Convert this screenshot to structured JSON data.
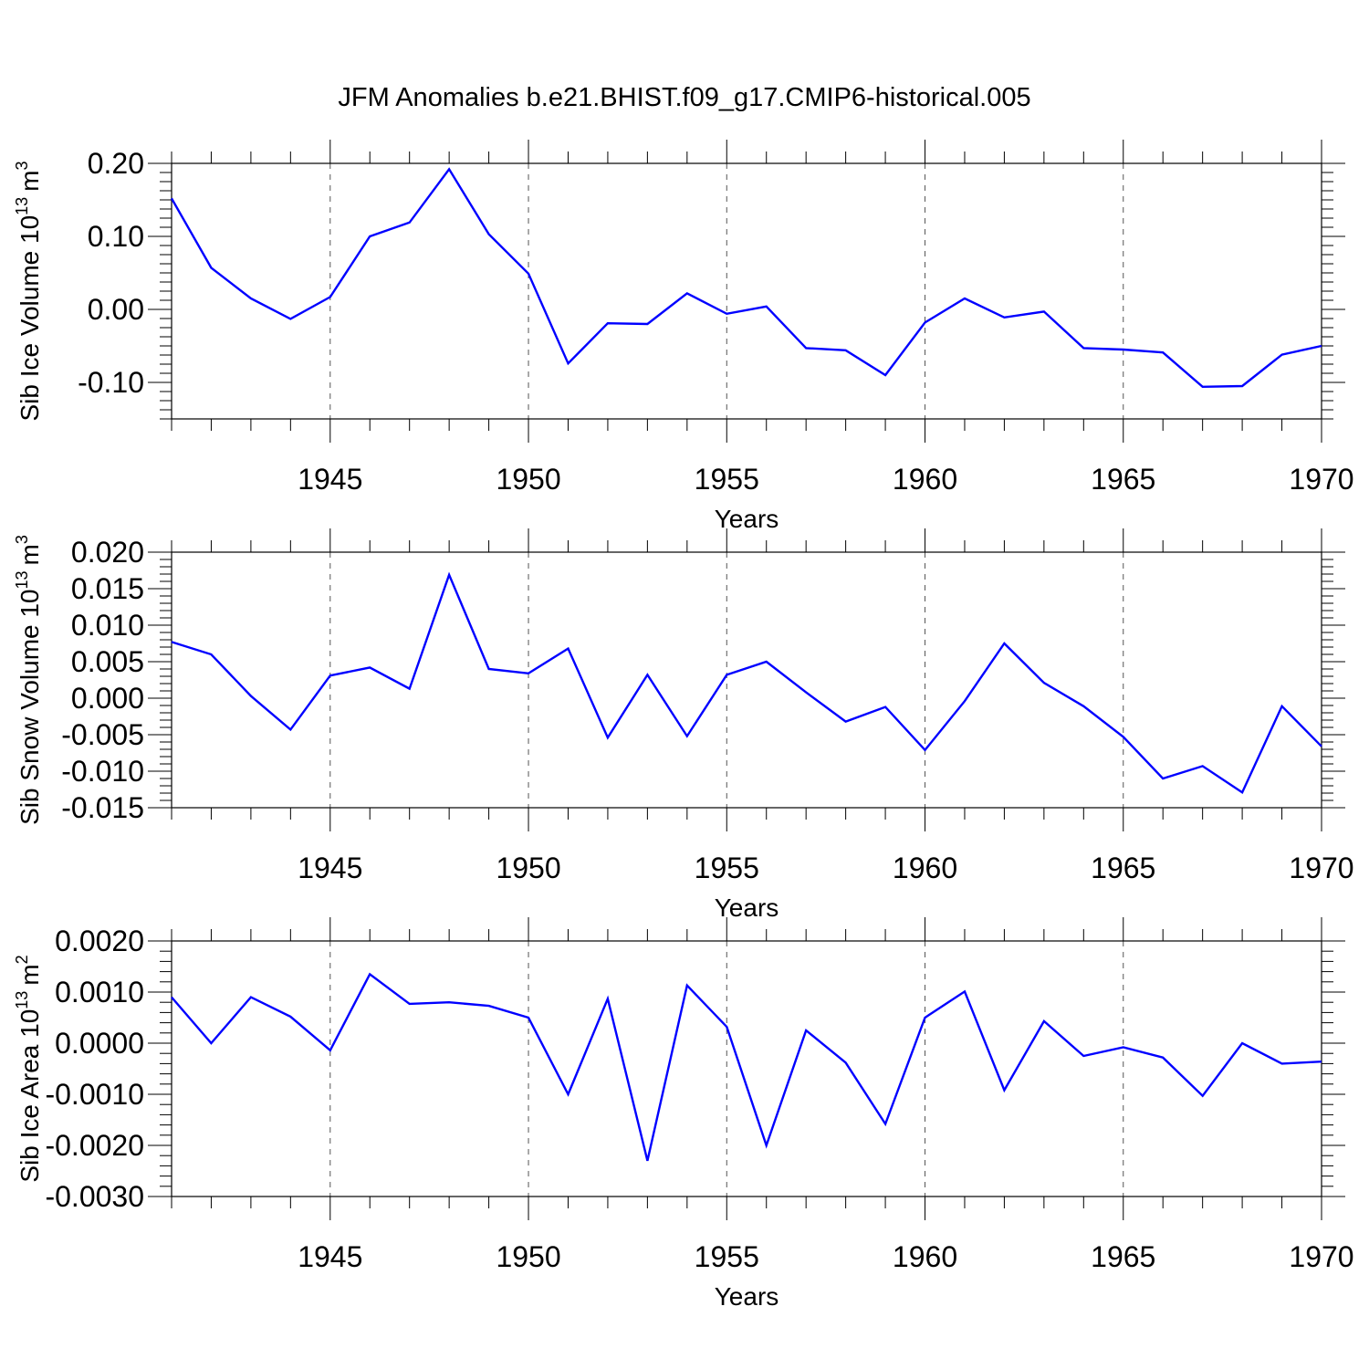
{
  "title": "JFM Anomalies b.e21.BHIST.f09_g17.CMIP6-historical.005",
  "colors": {
    "line": "#0000ff",
    "axis": "#000000",
    "grid": "#555555"
  },
  "chart_data": [
    {
      "type": "line",
      "title": "JFM Anomalies b.e21.BHIST.f09_g17.CMIP6-historical.005",
      "xlabel": "Years",
      "ylabel": "Sib Ice Volume 10",
      "ylabel_exp": "13",
      "ylabel_unit": "m",
      "ylabel_unit_exp": "3",
      "xlim": [
        1941,
        1970
      ],
      "ylim": [
        -0.15,
        0.2
      ],
      "yticks": [
        -0.1,
        0.0,
        0.1,
        0.2
      ],
      "ytick_labels": [
        "-0.10",
        "0.00",
        "0.10",
        "0.20"
      ],
      "xticks": [
        1945,
        1950,
        1955,
        1960,
        1965,
        1970
      ],
      "xtick_labels": [
        "1945",
        "1950",
        "1955",
        "1960",
        "1965",
        "1970"
      ],
      "grid": "vertical dashed at labeled years",
      "x": [
        1941,
        1942,
        1943,
        1944,
        1945,
        1946,
        1947,
        1948,
        1949,
        1950,
        1951,
        1952,
        1953,
        1954,
        1955,
        1956,
        1957,
        1958,
        1959,
        1960,
        1961,
        1962,
        1963,
        1964,
        1965,
        1966,
        1967,
        1968,
        1969,
        1970
      ],
      "series": [
        {
          "values": [
            0.152,
            0.057,
            0.015,
            -0.013,
            0.017,
            0.1,
            0.119,
            0.192,
            0.103,
            0.049,
            -0.074,
            -0.019,
            -0.02,
            0.022,
            -0.006,
            0.004,
            -0.053,
            -0.056,
            -0.09,
            -0.018,
            0.015,
            -0.011,
            -0.003,
            -0.053,
            -0.055,
            -0.059,
            -0.106,
            -0.105,
            -0.062,
            -0.05
          ],
          "color": "#0000ff"
        }
      ]
    },
    {
      "type": "line",
      "xlabel": "Years",
      "ylabel": "Sib Snow Volume 10",
      "ylabel_exp": "13",
      "ylabel_unit": "m",
      "ylabel_unit_exp": "3",
      "xlim": [
        1941,
        1970
      ],
      "ylim": [
        -0.015,
        0.02
      ],
      "yticks": [
        -0.015,
        -0.01,
        -0.005,
        0.0,
        0.005,
        0.01,
        0.015,
        0.02
      ],
      "ytick_labels": [
        "-0.015",
        "-0.010",
        "-0.005",
        "0.000",
        "0.005",
        "0.010",
        "0.015",
        "0.020"
      ],
      "xticks": [
        1945,
        1950,
        1955,
        1960,
        1965,
        1970
      ],
      "xtick_labels": [
        "1945",
        "1950",
        "1955",
        "1960",
        "1965",
        "1970"
      ],
      "grid": "vertical dashed at labeled years",
      "x": [
        1941,
        1942,
        1943,
        1944,
        1945,
        1946,
        1947,
        1948,
        1949,
        1950,
        1951,
        1952,
        1953,
        1954,
        1955,
        1956,
        1957,
        1958,
        1959,
        1960,
        1961,
        1962,
        1963,
        1964,
        1965,
        1966,
        1967,
        1968,
        1969,
        1970
      ],
      "series": [
        {
          "values": [
            0.0077,
            0.006,
            0.0003,
            -0.0043,
            0.0031,
            0.0042,
            0.0013,
            0.0169,
            0.004,
            0.0034,
            0.0068,
            -0.0054,
            0.0032,
            -0.0052,
            0.0032,
            0.005,
            0.0008,
            -0.0032,
            -0.0012,
            -0.0071,
            -0.0004,
            0.0075,
            0.0021,
            -0.0011,
            -0.0053,
            -0.011,
            -0.0093,
            -0.0129,
            -0.0011,
            -0.0066
          ],
          "color": "#0000ff"
        }
      ]
    },
    {
      "type": "line",
      "xlabel": "Years",
      "ylabel": "Sib Ice Area 10",
      "ylabel_exp": "13",
      "ylabel_unit": "m",
      "ylabel_unit_exp": "2",
      "xlim": [
        1941,
        1970
      ],
      "ylim": [
        -0.003,
        0.002
      ],
      "yticks": [
        -0.003,
        -0.002,
        -0.001,
        0.0,
        0.001,
        0.002
      ],
      "ytick_labels": [
        "-0.0030",
        "-0.0020",
        "-0.0010",
        "0.0000",
        "0.0010",
        "0.0020"
      ],
      "xticks": [
        1945,
        1950,
        1955,
        1960,
        1965,
        1970
      ],
      "xtick_labels": [
        "1945",
        "1950",
        "1955",
        "1960",
        "1965",
        "1970"
      ],
      "grid": "vertical dashed at labeled years",
      "x": [
        1941,
        1942,
        1943,
        1944,
        1945,
        1946,
        1947,
        1948,
        1949,
        1950,
        1951,
        1952,
        1953,
        1954,
        1955,
        1956,
        1957,
        1958,
        1959,
        1960,
        1961,
        1962,
        1963,
        1964,
        1965,
        1966,
        1967,
        1968,
        1969,
        1970
      ],
      "series": [
        {
          "values": [
            0.0009,
            0.0,
            0.0009,
            0.00052,
            -0.00014,
            0.00135,
            0.00077,
            0.0008,
            0.00073,
            0.0005,
            -0.001,
            0.00087,
            -0.0023,
            0.00113,
            0.00032,
            -0.002,
            0.00025,
            -0.00038,
            -0.00158,
            0.0005,
            0.00101,
            -0.00092,
            0.00043,
            -0.00025,
            -8e-05,
            -0.00028,
            -0.00103,
            0.0,
            -0.0004,
            -0.00036
          ],
          "color": "#0000ff"
        }
      ]
    }
  ]
}
